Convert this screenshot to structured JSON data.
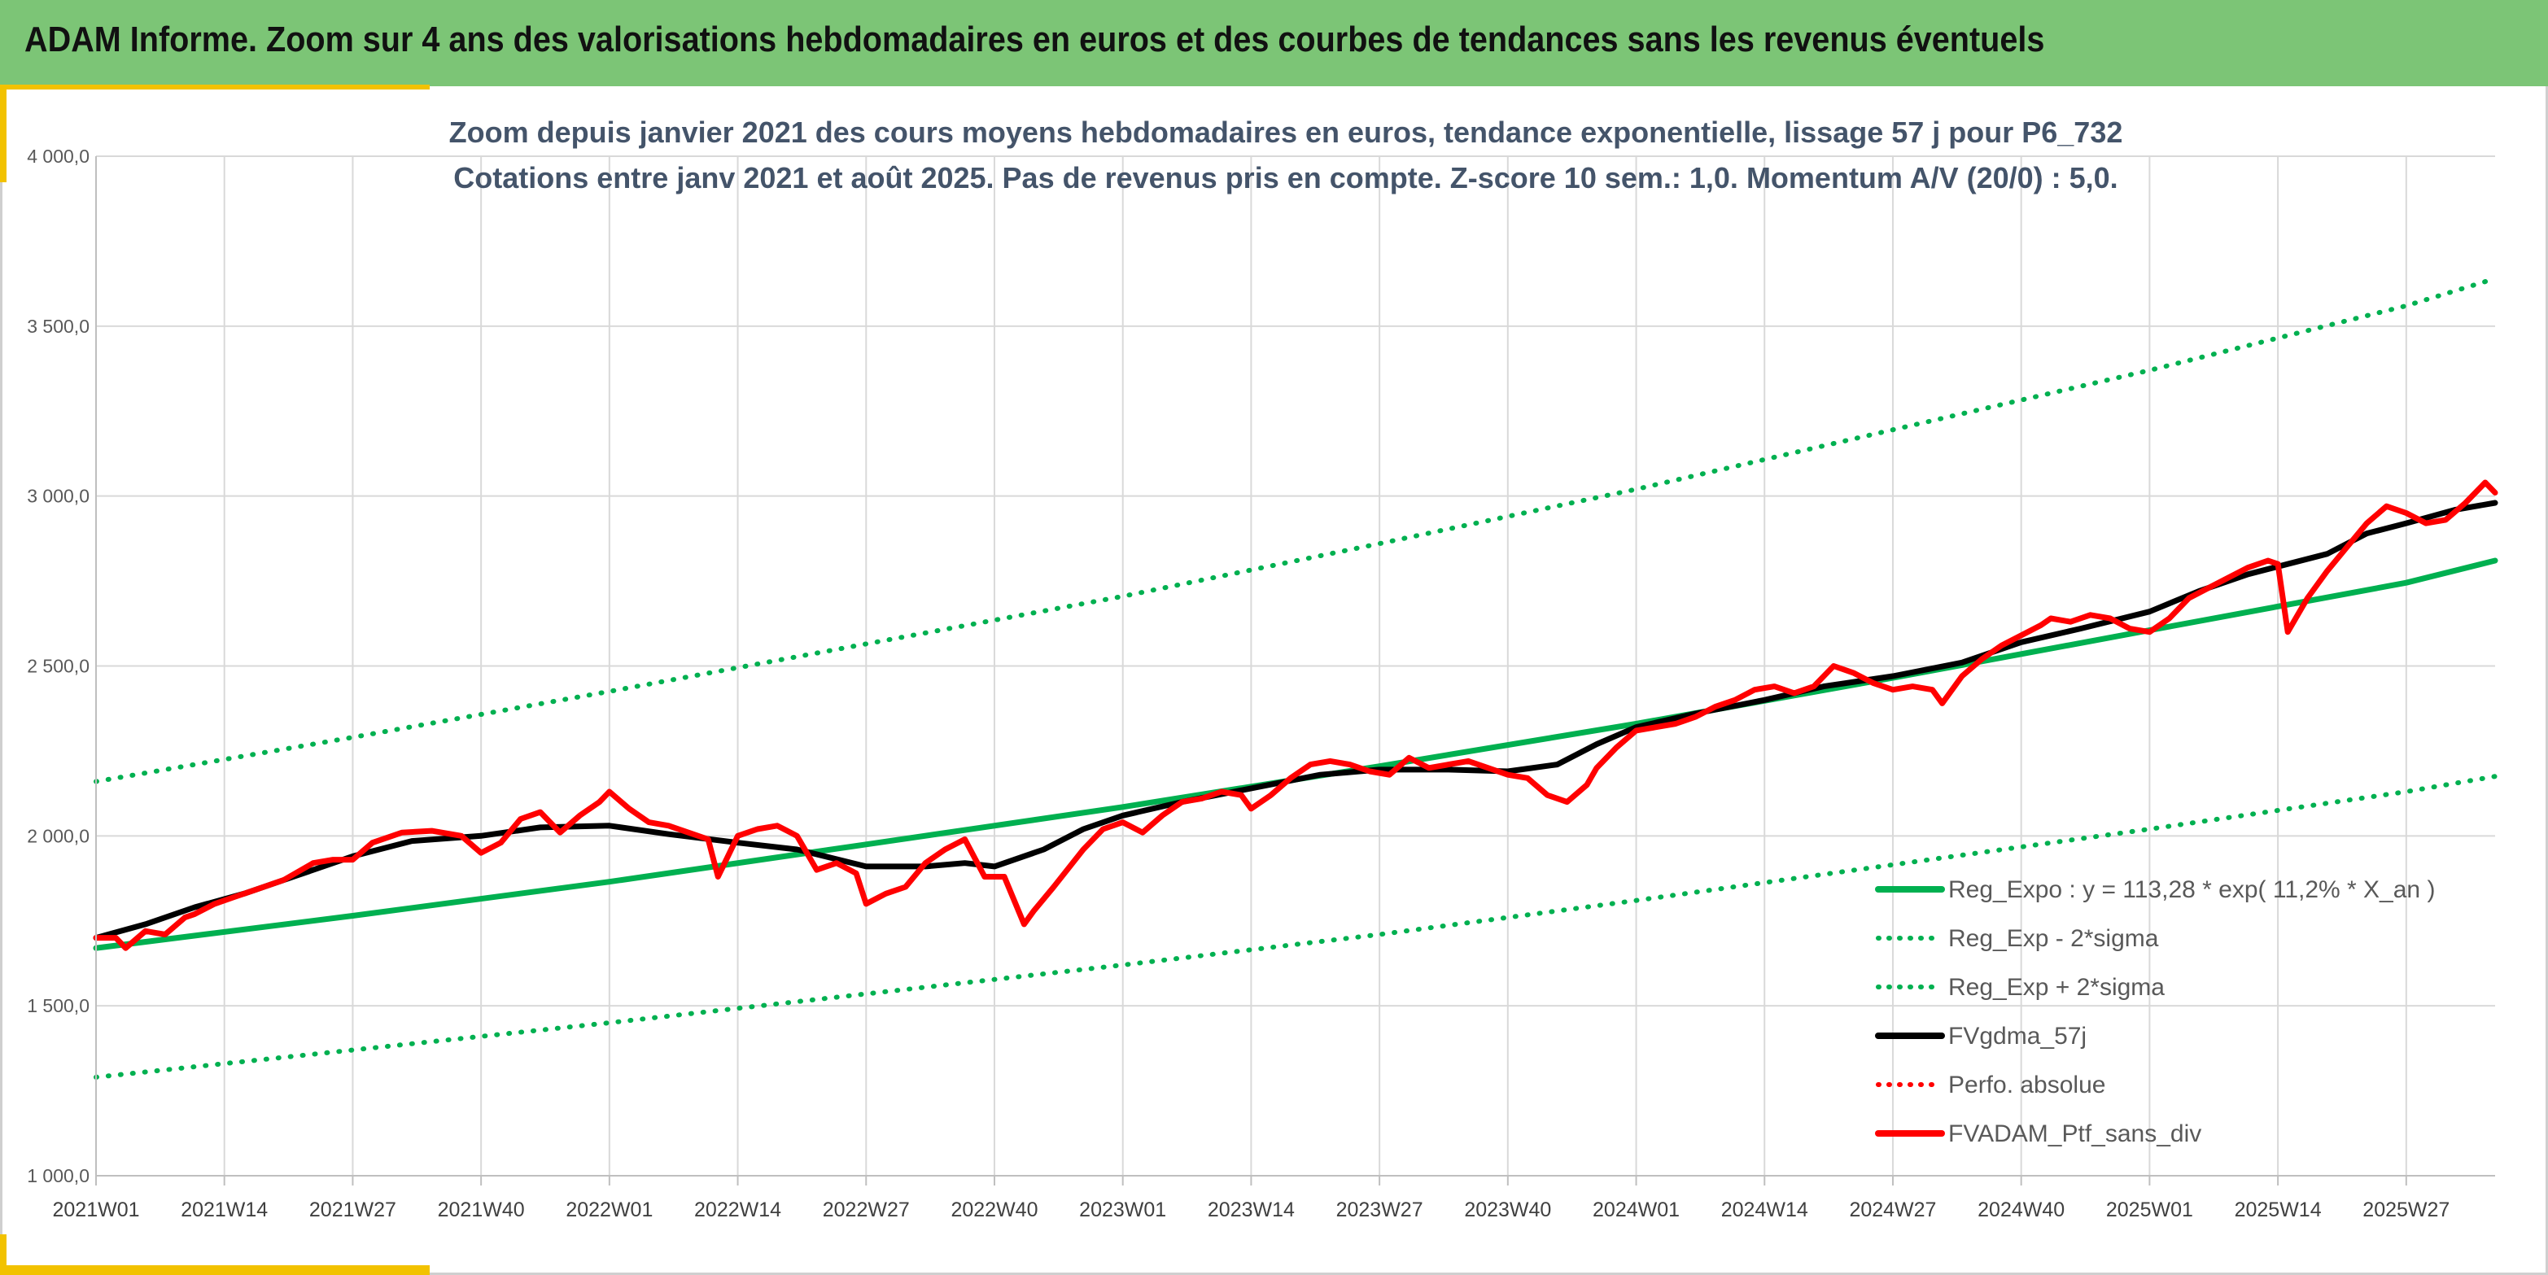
{
  "header": {
    "title": "ADAM Informe. Zoom sur 4 ans des valorisations hebdomadaires en euros et des courbes de tendances sans les revenus éventuels"
  },
  "colors": {
    "header_bg": "#7cc576",
    "accent": "#f2c200",
    "reg_expo": "#00b050",
    "fvgdma": "#000000",
    "fvadam": "#ff0000"
  },
  "chart_data": {
    "type": "line",
    "title_line1": "Zoom depuis janvier 2021 des cours moyens hebdomadaires en euros, tendance exponentielle, lissage 57 j pour P6_732",
    "title_line2": "Cotations entre janv 2021 et août 2025. Pas de revenus pris en compte. Z-score 10 sem.: 1,0. Momentum A/V (20/0) : 5,0.",
    "y_ticks": [
      "1 000,0",
      "1 500,0",
      "2 000,0",
      "2 500,0",
      "3 000,0",
      "3 500,0",
      "4 000,0"
    ],
    "y_tick_values": [
      1000,
      1500,
      2000,
      2500,
      3000,
      3500,
      4000
    ],
    "ylim": [
      1000,
      4000
    ],
    "x_ticks": [
      "2021W01",
      "2021W14",
      "2021W27",
      "2021W40",
      "2022W01",
      "2022W14",
      "2022W27",
      "2022W40",
      "2023W01",
      "2023W14",
      "2023W27",
      "2023W40",
      "2024W01",
      "2024W14",
      "2024W27",
      "2024W40",
      "2025W01",
      "2025W14",
      "2025W27"
    ],
    "x_tick_index": [
      0,
      13,
      26,
      39,
      52,
      65,
      78,
      91,
      104,
      117,
      130,
      143,
      156,
      169,
      182,
      195,
      208,
      221,
      234
    ],
    "x_count": 243,
    "grid": true,
    "legend_position": "bottom-right",
    "legend": [
      {
        "label": "Reg_Expo : y = 113,28 * exp( 11,2% *  X_an )",
        "color": "#00b050",
        "style": "solid"
      },
      {
        "label": "Reg_Exp - 2*sigma",
        "color": "#00b050",
        "style": "dotted"
      },
      {
        "label": "Reg_Exp + 2*sigma",
        "color": "#00b050",
        "style": "dotted"
      },
      {
        "label": "FVgdma_57j",
        "color": "#000000",
        "style": "solid"
      },
      {
        "label": "Perfo. absolue",
        "color": "#ff0000",
        "style": "dotted"
      },
      {
        "label": "FVADAM_Ptf_sans_div",
        "color": "#ff0000",
        "style": "solid"
      }
    ],
    "series": [
      {
        "name": "Reg_Expo : y = 113,28 * exp( 11,2% *  X_an )",
        "style": "solid",
        "color": "#00b050",
        "points": [
          [
            0,
            1670
          ],
          [
            26,
            1765
          ],
          [
            52,
            1865
          ],
          [
            78,
            1975
          ],
          [
            104,
            2085
          ],
          [
            130,
            2205
          ],
          [
            156,
            2330
          ],
          [
            182,
            2465
          ],
          [
            208,
            2605
          ],
          [
            234,
            2745
          ],
          [
            243,
            2810
          ]
        ]
      },
      {
        "name": "Reg_Exp - 2*sigma",
        "style": "dotted",
        "color": "#00b050",
        "points": [
          [
            0,
            1290
          ],
          [
            26,
            1370
          ],
          [
            52,
            1450
          ],
          [
            78,
            1535
          ],
          [
            104,
            1620
          ],
          [
            130,
            1710
          ],
          [
            156,
            1810
          ],
          [
            182,
            1915
          ],
          [
            208,
            2020
          ],
          [
            234,
            2130
          ],
          [
            243,
            2175
          ]
        ]
      },
      {
        "name": "Reg_Exp + 2*sigma",
        "style": "dotted",
        "color": "#00b050",
        "points": [
          [
            0,
            2160
          ],
          [
            26,
            2290
          ],
          [
            52,
            2425
          ],
          [
            78,
            2565
          ],
          [
            104,
            2705
          ],
          [
            130,
            2860
          ],
          [
            156,
            3020
          ],
          [
            182,
            3195
          ],
          [
            208,
            3370
          ],
          [
            234,
            3560
          ],
          [
            243,
            3640
          ]
        ]
      },
      {
        "name": "FVgdma_57j",
        "style": "solid",
        "color": "#000000",
        "points": [
          [
            0,
            1700
          ],
          [
            5,
            1740
          ],
          [
            10,
            1790
          ],
          [
            15,
            1830
          ],
          [
            20,
            1880
          ],
          [
            26,
            1940
          ],
          [
            32,
            1985
          ],
          [
            39,
            2000
          ],
          [
            45,
            2025
          ],
          [
            52,
            2030
          ],
          [
            58,
            2005
          ],
          [
            65,
            1980
          ],
          [
            71,
            1960
          ],
          [
            78,
            1910
          ],
          [
            84,
            1910
          ],
          [
            88,
            1920
          ],
          [
            91,
            1910
          ],
          [
            96,
            1960
          ],
          [
            100,
            2020
          ],
          [
            104,
            2060
          ],
          [
            110,
            2100
          ],
          [
            117,
            2140
          ],
          [
            124,
            2180
          ],
          [
            130,
            2195
          ],
          [
            137,
            2195
          ],
          [
            143,
            2190
          ],
          [
            148,
            2210
          ],
          [
            152,
            2270
          ],
          [
            156,
            2320
          ],
          [
            162,
            2360
          ],
          [
            169,
            2400
          ],
          [
            175,
            2440
          ],
          [
            182,
            2470
          ],
          [
            189,
            2510
          ],
          [
            195,
            2570
          ],
          [
            201,
            2610
          ],
          [
            208,
            2660
          ],
          [
            213,
            2720
          ],
          [
            218,
            2770
          ],
          [
            222,
            2800
          ],
          [
            226,
            2830
          ],
          [
            230,
            2890
          ],
          [
            234,
            2920
          ],
          [
            239,
            2960
          ],
          [
            243,
            2980
          ]
        ]
      },
      {
        "name": "FVADAM_Ptf_sans_div",
        "style": "solid",
        "color": "#ff0000",
        "points": [
          [
            0,
            1700
          ],
          [
            2,
            1700
          ],
          [
            3,
            1670
          ],
          [
            5,
            1720
          ],
          [
            7,
            1710
          ],
          [
            9,
            1760
          ],
          [
            10,
            1770
          ],
          [
            12,
            1800
          ],
          [
            14,
            1820
          ],
          [
            16,
            1840
          ],
          [
            19,
            1870
          ],
          [
            22,
            1920
          ],
          [
            24,
            1930
          ],
          [
            26,
            1930
          ],
          [
            28,
            1980
          ],
          [
            31,
            2010
          ],
          [
            34,
            2015
          ],
          [
            37,
            2000
          ],
          [
            39,
            1950
          ],
          [
            41,
            1980
          ],
          [
            43,
            2050
          ],
          [
            45,
            2070
          ],
          [
            47,
            2010
          ],
          [
            49,
            2060
          ],
          [
            51,
            2100
          ],
          [
            52,
            2130
          ],
          [
            54,
            2080
          ],
          [
            56,
            2040
          ],
          [
            58,
            2030
          ],
          [
            60,
            2010
          ],
          [
            62,
            1990
          ],
          [
            63,
            1880
          ],
          [
            65,
            2000
          ],
          [
            67,
            2020
          ],
          [
            69,
            2030
          ],
          [
            71,
            2000
          ],
          [
            73,
            1900
          ],
          [
            75,
            1920
          ],
          [
            77,
            1890
          ],
          [
            78,
            1800
          ],
          [
            80,
            1830
          ],
          [
            82,
            1850
          ],
          [
            84,
            1920
          ],
          [
            86,
            1960
          ],
          [
            88,
            1990
          ],
          [
            90,
            1880
          ],
          [
            92,
            1880
          ],
          [
            94,
            1740
          ],
          [
            95,
            1780
          ],
          [
            97,
            1850
          ],
          [
            100,
            1960
          ],
          [
            102,
            2020
          ],
          [
            104,
            2040
          ],
          [
            106,
            2010
          ],
          [
            108,
            2060
          ],
          [
            110,
            2100
          ],
          [
            112,
            2110
          ],
          [
            114,
            2130
          ],
          [
            116,
            2120
          ],
          [
            117,
            2080
          ],
          [
            119,
            2120
          ],
          [
            121,
            2170
          ],
          [
            123,
            2210
          ],
          [
            125,
            2220
          ],
          [
            127,
            2210
          ],
          [
            129,
            2190
          ],
          [
            131,
            2180
          ],
          [
            133,
            2230
          ],
          [
            135,
            2200
          ],
          [
            137,
            2210
          ],
          [
            139,
            2220
          ],
          [
            141,
            2200
          ],
          [
            143,
            2180
          ],
          [
            145,
            2170
          ],
          [
            147,
            2120
          ],
          [
            149,
            2100
          ],
          [
            151,
            2150
          ],
          [
            152,
            2200
          ],
          [
            154,
            2260
          ],
          [
            156,
            2310
          ],
          [
            158,
            2320
          ],
          [
            160,
            2330
          ],
          [
            162,
            2350
          ],
          [
            164,
            2380
          ],
          [
            166,
            2400
          ],
          [
            168,
            2430
          ],
          [
            170,
            2440
          ],
          [
            172,
            2420
          ],
          [
            174,
            2440
          ],
          [
            176,
            2500
          ],
          [
            178,
            2480
          ],
          [
            180,
            2450
          ],
          [
            182,
            2430
          ],
          [
            184,
            2440
          ],
          [
            186,
            2430
          ],
          [
            187,
            2390
          ],
          [
            189,
            2470
          ],
          [
            191,
            2520
          ],
          [
            193,
            2560
          ],
          [
            195,
            2590
          ],
          [
            197,
            2620
          ],
          [
            198,
            2640
          ],
          [
            200,
            2630
          ],
          [
            202,
            2650
          ],
          [
            204,
            2640
          ],
          [
            206,
            2610
          ],
          [
            208,
            2600
          ],
          [
            210,
            2640
          ],
          [
            212,
            2700
          ],
          [
            214,
            2730
          ],
          [
            216,
            2760
          ],
          [
            218,
            2790
          ],
          [
            220,
            2810
          ],
          [
            221,
            2800
          ],
          [
            222,
            2600
          ],
          [
            224,
            2700
          ],
          [
            226,
            2780
          ],
          [
            228,
            2850
          ],
          [
            230,
            2920
          ],
          [
            232,
            2970
          ],
          [
            234,
            2950
          ],
          [
            236,
            2920
          ],
          [
            238,
            2930
          ],
          [
            240,
            2980
          ],
          [
            242,
            3040
          ],
          [
            243,
            3010
          ]
        ]
      }
    ]
  }
}
